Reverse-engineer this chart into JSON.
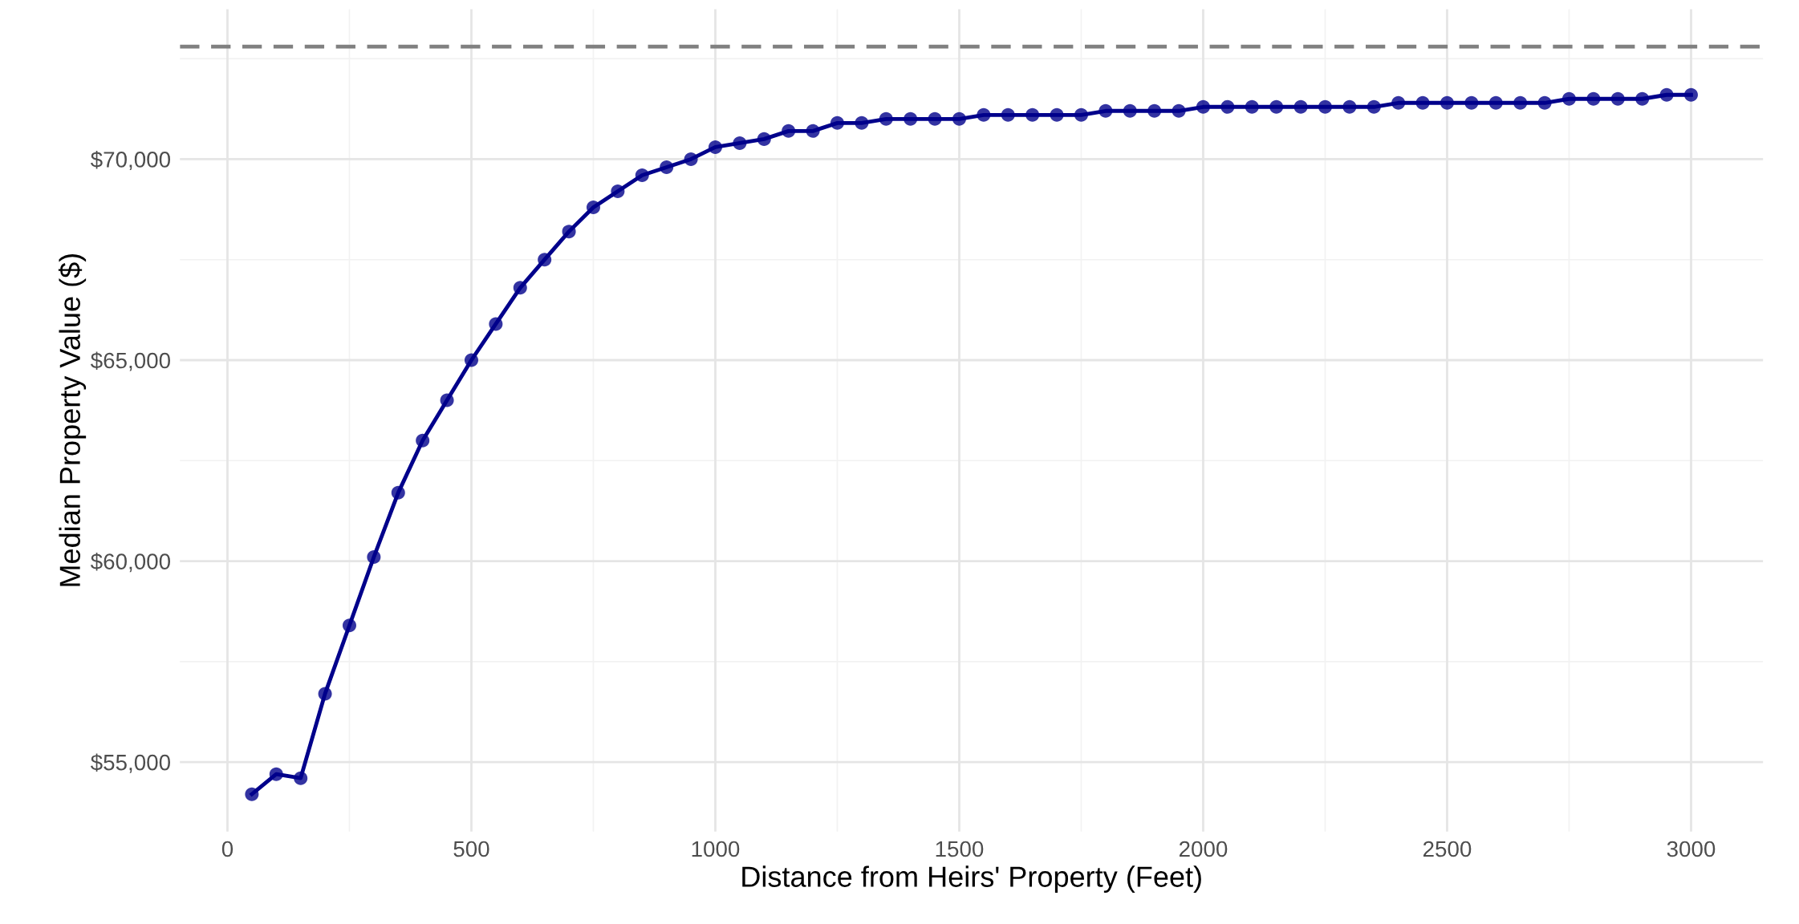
{
  "chart_data": {
    "type": "line",
    "xlabel": "Distance from Heirs' Property (Feet)",
    "ylabel": "Median Property Value ($)",
    "x": [
      50,
      100,
      150,
      200,
      250,
      300,
      350,
      400,
      450,
      500,
      550,
      600,
      650,
      700,
      750,
      800,
      850,
      900,
      950,
      1000,
      1050,
      1100,
      1150,
      1200,
      1250,
      1300,
      1350,
      1400,
      1450,
      1500,
      1550,
      1600,
      1650,
      1700,
      1750,
      1800,
      1850,
      1900,
      1950,
      2000,
      2050,
      2100,
      2150,
      2200,
      2250,
      2300,
      2350,
      2400,
      2450,
      2500,
      2550,
      2600,
      2650,
      2700,
      2750,
      2800,
      2850,
      2900,
      2950,
      3000
    ],
    "series": [
      {
        "color": "#00008b",
        "values": [
          54200,
          54700,
          54600,
          56700,
          58400,
          60100,
          61700,
          63000,
          64000,
          65000,
          65900,
          66800,
          67500,
          68200,
          68800,
          69200,
          69600,
          69800,
          70000,
          70300,
          70400,
          70500,
          70700,
          70700,
          70900,
          70900,
          71000,
          71000,
          71000,
          71000,
          71100,
          71100,
          71100,
          71100,
          71100,
          71200,
          71200,
          71200,
          71200,
          71300,
          71300,
          71300,
          71300,
          71300,
          71300,
          71300,
          71300,
          71400,
          71400,
          71400,
          71400,
          71400,
          71400,
          71400,
          71500,
          71500,
          71500,
          71500,
          71600,
          71600
        ]
      }
    ],
    "marker": "circle",
    "line_style": "solid",
    "grid": true,
    "xlim": [
      -97.5,
      3147.5
    ],
    "xticks": [
      0,
      500,
      1000,
      1500,
      2000,
      2500,
      3000
    ],
    "ylim": [
      53270,
      73730
    ],
    "yticks": [
      {
        "value": 55000,
        "label": "$55,000"
      },
      {
        "value": 60000,
        "label": "$60,000"
      },
      {
        "value": 65000,
        "label": "$65,000"
      },
      {
        "value": 70000,
        "label": "$70,000"
      }
    ],
    "ref_lines": [
      {
        "axis": "y",
        "value": 72800,
        "color": "#808080",
        "line_style": "dashed"
      }
    ]
  }
}
